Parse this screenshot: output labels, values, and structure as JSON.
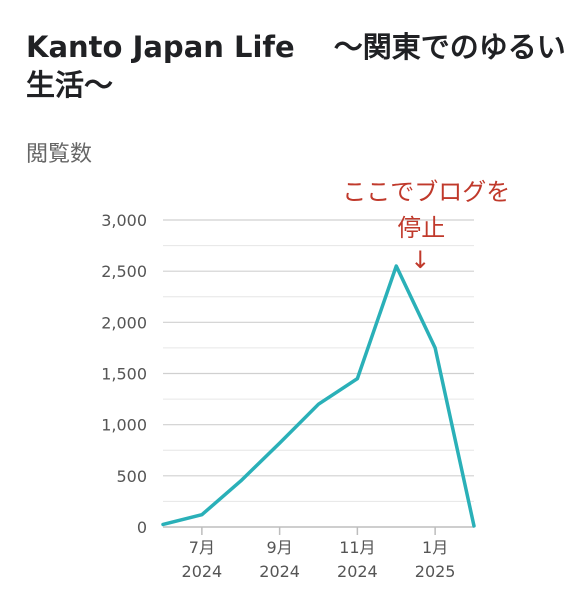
{
  "header": {
    "title": "Kanto Japan Life　 ～関東でのゆるい生活～",
    "metric": "閲覧数"
  },
  "chart_data": {
    "type": "line",
    "x": [
      "2024-06",
      "2024-07",
      "2024-08",
      "2024-09",
      "2024-10",
      "2024-11",
      "2024-12",
      "2025-01",
      "2025-02"
    ],
    "series": [
      {
        "values": [
          25,
          120,
          450,
          820,
          1200,
          1450,
          2550,
          1750,
          10
        ]
      }
    ],
    "xticks": [
      {
        "x": "2024-07",
        "month": "7月",
        "year": "2024"
      },
      {
        "x": "2024-09",
        "month": "9月",
        "year": "2024"
      },
      {
        "x": "2024-11",
        "month": "11月",
        "year": "2024"
      },
      {
        "x": "2025-01",
        "month": "1月",
        "year": "2025"
      }
    ],
    "yticks": [
      "0",
      "500",
      "1,000",
      "1,500",
      "2,000",
      "2,500",
      "3,000"
    ],
    "ylim": [
      0,
      3000
    ],
    "minor_grid_step": 250,
    "grid": true,
    "line_color": "#2ab0b8",
    "annotation": {
      "line1": "ここでブログを",
      "line2": "停止",
      "arrow": "↓",
      "target_x": "2024-12",
      "color": "#c0392b"
    }
  }
}
